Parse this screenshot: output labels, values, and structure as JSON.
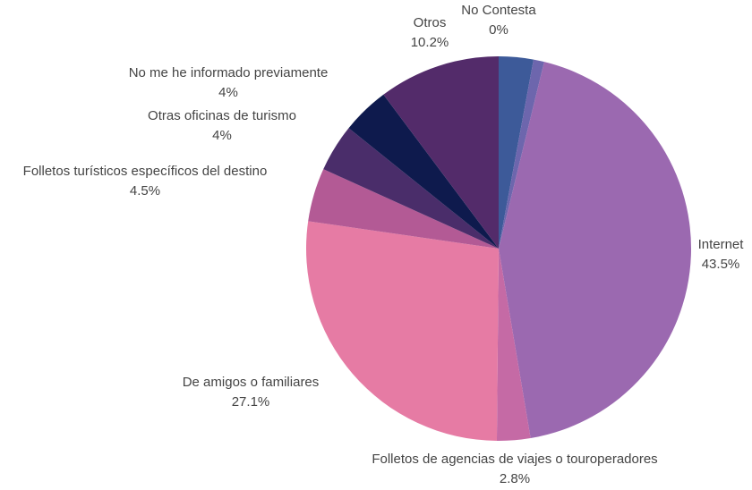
{
  "chart_data": {
    "type": "pie",
    "categories": [
      null,
      null,
      "Internet",
      "Folletos de agencias de viajes o touroperadores",
      "De amigos o familiares",
      "Folletos turísticos específicos del destino",
      "Otras oficinas de turismo",
      "No me he informado previamente",
      "Otros",
      "No Contesta"
    ],
    "values": [
      2.9,
      0.9,
      43.5,
      2.8,
      27.1,
      4.5,
      4,
      4,
      10.2,
      0
    ],
    "value_labels": [
      null,
      null,
      "43.5%",
      "2.8%",
      "27.1%",
      "4.5%",
      "4%",
      "4%",
      "10.2%",
      "0%"
    ],
    "colors": [
      "#3d5a99",
      "#6d66ad",
      "#9b69b0",
      "#c56aa5",
      "#e67ba4",
      "#b35a95",
      "#4a2d6a",
      "#0e1a4d",
      "#532b6a",
      "#3d5a99"
    ]
  }
}
